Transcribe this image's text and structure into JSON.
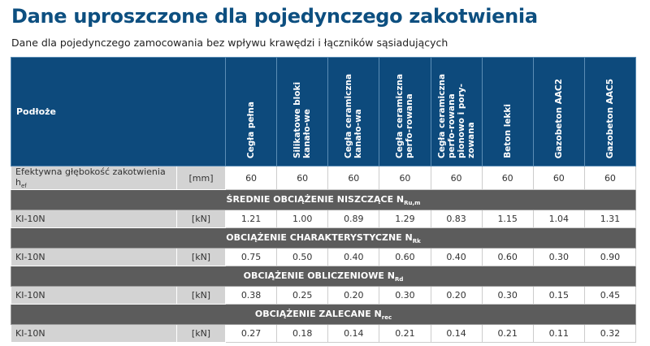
{
  "title": "Dane uproszczone dla pojedynczego zakotwienia",
  "subtitle": "Dane dla pojedynczego zamocowania bez wpływu krawędzi i łączników sąsiadujących",
  "header": {
    "label": "Podłoże",
    "columns": [
      "Cegła pełna",
      "Silikatowe bloki kanało-we",
      "Cegła ceramiczna kanało-wa",
      "Cegła ceramiczna perfo-rowana",
      "Cegła ceramiczna perfo-rowana pionowo i pory-zowana",
      "Beton lekki",
      "Gazobeton AAC2",
      "Gazobeton AAC5"
    ]
  },
  "depth_row": {
    "label": "Efektywna głębokość zakotwienia h",
    "sub": "ef",
    "unit": "[mm]",
    "values": [
      "60",
      "60",
      "60",
      "60",
      "60",
      "60",
      "60",
      "60"
    ]
  },
  "sections": [
    {
      "title": "ŚREDNIE OBCIĄŻENIE NISZCZĄCE N",
      "sub": "Ru,m",
      "row": {
        "label": "KI-10N",
        "unit": "[kN]",
        "values": [
          "1.21",
          "1.00",
          "0.89",
          "1.29",
          "0.83",
          "1.15",
          "1.04",
          "1.31"
        ]
      }
    },
    {
      "title": "OBCIĄŻENIE CHARAKTERYSTYCZNE N",
      "sub": "Rk",
      "row": {
        "label": "KI-10N",
        "unit": "[kN]",
        "values": [
          "0.75",
          "0.50",
          "0.40",
          "0.60",
          "0.40",
          "0.60",
          "0.30",
          "0.90"
        ]
      }
    },
    {
      "title": "OBCIĄŻENIE OBLICZENIOWE N",
      "sub": "Rd",
      "row": {
        "label": "KI-10N",
        "unit": "[kN]",
        "values": [
          "0.38",
          "0.25",
          "0.20",
          "0.30",
          "0.20",
          "0.30",
          "0.15",
          "0.45"
        ]
      }
    },
    {
      "title": "OBCIĄŻENIE ZALECANE N",
      "sub": "rec",
      "row": {
        "label": "KI-10N",
        "unit": "[kN]",
        "values": [
          "0.27",
          "0.18",
          "0.14",
          "0.21",
          "0.14",
          "0.21",
          "0.11",
          "0.32"
        ]
      }
    }
  ]
}
